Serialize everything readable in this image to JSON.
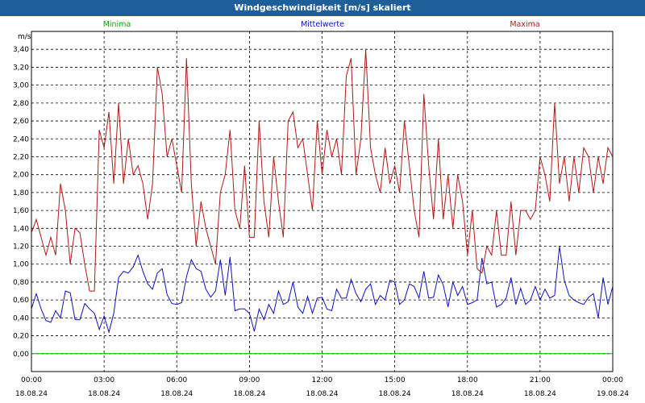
{
  "window": {
    "title": "Windgeschwindigkeit [m/s] skaliert"
  },
  "colors": {
    "minima": "#00aa00",
    "mittelwerte": "#1010b8",
    "maxima": "#b01818",
    "titlebar": "#1f5f99"
  },
  "chart_data": {
    "type": "line",
    "title": "Windgeschwindigkeit [m/s] skaliert",
    "ylabel": "m/s",
    "ylim": [
      -0.2,
      3.6
    ],
    "y_ticks": [
      "0,00",
      "0,20",
      "0,40",
      "0,60",
      "0,80",
      "1,00",
      "1,20",
      "1,40",
      "1,60",
      "1,80",
      "2,00",
      "2,20",
      "2,40",
      "2,60",
      "2,80",
      "3,00",
      "3,20",
      "3,40"
    ],
    "x_ticks": [
      {
        "time": "00:00",
        "date": "18.08.24"
      },
      {
        "time": "03:00",
        "date": "18.08.24"
      },
      {
        "time": "06:00",
        "date": "18.08.24"
      },
      {
        "time": "09:00",
        "date": "18.08.24"
      },
      {
        "time": "12:00",
        "date": "18.08.24"
      },
      {
        "time": "15:00",
        "date": "18.08.24"
      },
      {
        "time": "18:00",
        "date": "18.08.24"
      },
      {
        "time": "21:00",
        "date": "18.08.24"
      },
      {
        "time": "00:00",
        "date": "19.08.24"
      }
    ],
    "grid": true,
    "legend_placement": "top",
    "series": [
      {
        "name": "Minima",
        "x_hours": [
          0,
          24
        ],
        "values": [
          0.0,
          0.0
        ]
      },
      {
        "name": "Mittelwerte",
        "x_hours": [
          0.0,
          0.2,
          0.4,
          0.6,
          0.8,
          1.0,
          1.2,
          1.4,
          1.6,
          1.8,
          2.0,
          2.2,
          2.4,
          2.6,
          2.8,
          3.0,
          3.2,
          3.4,
          3.6,
          3.8,
          4.0,
          4.2,
          4.4,
          4.6,
          4.8,
          5.0,
          5.2,
          5.4,
          5.6,
          5.8,
          6.0,
          6.2,
          6.4,
          6.6,
          6.8,
          7.0,
          7.2,
          7.4,
          7.6,
          7.8,
          8.0,
          8.2,
          8.4,
          8.6,
          8.8,
          9.0,
          9.2,
          9.4,
          9.6,
          9.8,
          10.0,
          10.2,
          10.4,
          10.6,
          10.8,
          11.0,
          11.2,
          11.4,
          11.6,
          11.8,
          12.0,
          12.2,
          12.4,
          12.6,
          12.8,
          13.0,
          13.2,
          13.4,
          13.6,
          13.8,
          14.0,
          14.2,
          14.4,
          14.6,
          14.8,
          15.0,
          15.2,
          15.4,
          15.6,
          15.8,
          16.0,
          16.2,
          16.4,
          16.6,
          16.8,
          17.0,
          17.2,
          17.4,
          17.6,
          17.8,
          18.0,
          18.2,
          18.4,
          18.6,
          18.8,
          19.0,
          19.2,
          19.4,
          19.6,
          19.8,
          20.0,
          20.2,
          20.4,
          20.6,
          20.8,
          21.0,
          21.2,
          21.4,
          21.6,
          21.8,
          22.0,
          22.2,
          22.4,
          22.6,
          22.8,
          23.0,
          23.2,
          23.4,
          23.6,
          23.8,
          24.0
        ],
        "values": [
          0.5,
          0.67,
          0.5,
          0.37,
          0.35,
          0.48,
          0.4,
          0.7,
          0.68,
          0.38,
          0.38,
          0.56,
          0.5,
          0.45,
          0.27,
          0.42,
          0.24,
          0.45,
          0.85,
          0.92,
          0.9,
          0.97,
          1.1,
          0.92,
          0.78,
          0.72,
          0.9,
          0.95,
          0.66,
          0.56,
          0.55,
          0.57,
          0.86,
          1.05,
          0.95,
          0.92,
          0.72,
          0.63,
          0.7,
          1.05,
          0.65,
          1.08,
          0.48,
          0.5,
          0.5,
          0.45,
          0.25,
          0.5,
          0.38,
          0.55,
          0.45,
          0.7,
          0.55,
          0.58,
          0.8,
          0.52,
          0.45,
          0.64,
          0.45,
          0.62,
          0.63,
          0.5,
          0.48,
          0.72,
          0.62,
          0.62,
          0.83,
          0.67,
          0.58,
          0.72,
          0.78,
          0.55,
          0.65,
          0.6,
          0.82,
          0.8,
          0.55,
          0.6,
          0.78,
          0.75,
          0.62,
          0.92,
          0.62,
          0.63,
          0.88,
          0.77,
          0.52,
          0.8,
          0.65,
          0.75,
          0.55,
          0.57,
          0.6,
          1.07,
          0.78,
          0.8,
          0.52,
          0.55,
          0.62,
          0.85,
          0.55,
          0.73,
          0.55,
          0.6,
          0.75,
          0.6,
          0.72,
          0.62,
          0.65,
          1.2,
          0.82,
          0.65,
          0.6,
          0.57,
          0.55,
          0.63,
          0.67,
          0.4,
          0.85,
          0.55,
          0.75
        ],
        "values_note": ""
      },
      {
        "name": "Maxima",
        "x_hours": [
          0.0,
          0.2,
          0.4,
          0.6,
          0.8,
          1.0,
          1.2,
          1.4,
          1.6,
          1.8,
          2.0,
          2.2,
          2.4,
          2.6,
          2.8,
          3.0,
          3.2,
          3.4,
          3.6,
          3.8,
          4.0,
          4.2,
          4.4,
          4.6,
          4.8,
          5.0,
          5.2,
          5.4,
          5.6,
          5.8,
          6.0,
          6.2,
          6.4,
          6.6,
          6.8,
          7.0,
          7.2,
          7.4,
          7.6,
          7.8,
          8.0,
          8.2,
          8.4,
          8.6,
          8.8,
          9.0,
          9.2,
          9.4,
          9.6,
          9.8,
          10.0,
          10.2,
          10.4,
          10.6,
          10.8,
          11.0,
          11.2,
          11.4,
          11.6,
          11.8,
          12.0,
          12.2,
          12.4,
          12.6,
          12.8,
          13.0,
          13.2,
          13.4,
          13.6,
          13.8,
          14.0,
          14.2,
          14.4,
          14.6,
          14.8,
          15.0,
          15.2,
          15.4,
          15.6,
          15.8,
          16.0,
          16.2,
          16.4,
          16.6,
          16.8,
          17.0,
          17.2,
          17.4,
          17.6,
          17.8,
          18.0,
          18.2,
          18.4,
          18.6,
          18.8,
          19.0,
          19.2,
          19.4,
          19.6,
          19.8,
          20.0,
          20.2,
          20.4,
          20.6,
          20.8,
          21.0,
          21.2,
          21.4,
          21.6,
          21.8,
          22.0,
          22.2,
          22.4,
          22.6,
          22.8,
          23.0,
          23.2,
          23.4,
          23.6,
          23.8,
          24.0
        ],
        "values": [
          1.35,
          1.5,
          1.3,
          1.1,
          1.3,
          1.1,
          1.9,
          1.6,
          1.0,
          1.4,
          1.35,
          1.0,
          0.7,
          0.7,
          2.5,
          2.3,
          2.7,
          1.9,
          2.8,
          1.9,
          2.4,
          2.0,
          2.1,
          1.9,
          1.5,
          1.9,
          3.2,
          2.9,
          2.2,
          2.4,
          2.1,
          1.8,
          3.3,
          1.9,
          1.2,
          1.7,
          1.4,
          1.2,
          1.0,
          1.8,
          2.0,
          2.5,
          1.6,
          1.4,
          2.1,
          1.3,
          1.3,
          2.6,
          1.7,
          1.3,
          2.2,
          1.7,
          1.3,
          2.6,
          2.7,
          2.3,
          2.4,
          2.0,
          1.6,
          2.6,
          2.0,
          2.5,
          2.2,
          2.4,
          2.0,
          3.1,
          3.3,
          2.0,
          2.4,
          3.4,
          2.3,
          2.0,
          1.8,
          2.3,
          1.9,
          2.1,
          1.8,
          2.6,
          2.1,
          1.6,
          1.3,
          2.9,
          2.1,
          1.5,
          2.4,
          1.5,
          2.0,
          1.4,
          2.0,
          1.7,
          1.1,
          1.6,
          0.95,
          0.9,
          1.2,
          1.1,
          1.6,
          1.1,
          1.1,
          1.7,
          1.1,
          1.6,
          1.6,
          1.5,
          1.6,
          2.2,
          2.0,
          1.7,
          2.8,
          1.9,
          2.2,
          1.7,
          2.2,
          1.8,
          2.3,
          2.2,
          1.8,
          2.2,
          1.9,
          2.3,
          2.2
        ],
        "values_note": ""
      }
    ]
  }
}
